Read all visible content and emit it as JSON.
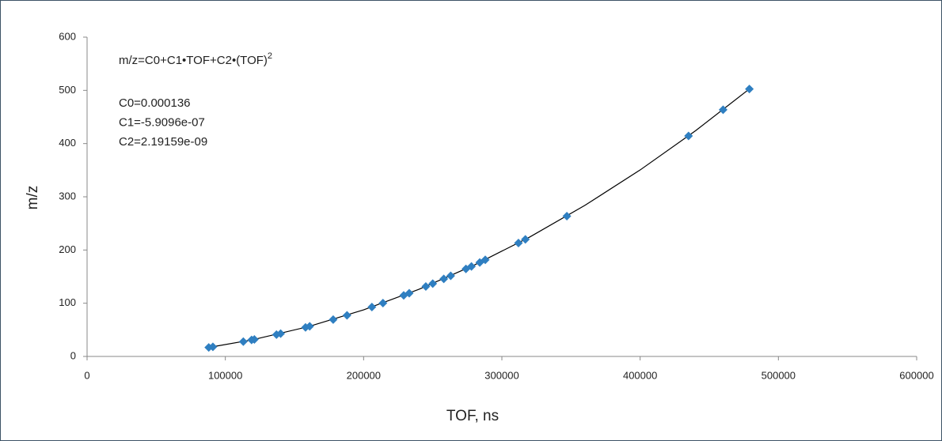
{
  "chart_data": {
    "type": "scatter",
    "x_label": "TOF, ns",
    "y_label": "m/z",
    "equation": "m/z=C0+C1•TOF+C2•(TOF)",
    "equation_superscript": "2",
    "annotations": [
      "C0=0.000136",
      "C1=-5.9096e-07",
      "C2=2.19159e-09"
    ],
    "x": [
      88000,
      91000,
      113000,
      119000,
      121000,
      137000,
      140000,
      158000,
      161000,
      178000,
      188000,
      206000,
      214000,
      229000,
      233000,
      245000,
      250000,
      258000,
      263000,
      274000,
      278000,
      284000,
      288000,
      312000,
      317000,
      347000,
      435000,
      460000,
      479000
    ],
    "values": [
      16.9,
      18.1,
      27.9,
      31.0,
      32.0,
      41.1,
      42.9,
      54.6,
      56.7,
      69.3,
      77.3,
      92.9,
      100.2,
      114.8,
      118.8,
      131.4,
      136.8,
      145.7,
      151.4,
      164.4,
      169.2,
      176.6,
      181.6,
      213.2,
      220.0,
      263.7,
      414.4,
      463.5,
      502.6
    ],
    "color": "#2f7fc1",
    "fit": {
      "x": [
        88000,
        120000,
        160000,
        200000,
        240000,
        280000,
        320000,
        360000,
        400000,
        440000,
        479000
      ],
      "values": [
        16.9,
        31.5,
        56.0,
        87.5,
        126.1,
        171.6,
        224.2,
        283.8,
        350.4,
        424.0,
        502.6
      ],
      "color": "#000000"
    },
    "xlim": [
      0,
      600000
    ],
    "xticks": [
      0,
      100000,
      200000,
      300000,
      400000,
      500000,
      600000
    ],
    "ylim": [
      0,
      600
    ],
    "yticks": [
      0,
      100,
      200,
      300,
      400,
      500,
      600
    ],
    "grid": false
  }
}
